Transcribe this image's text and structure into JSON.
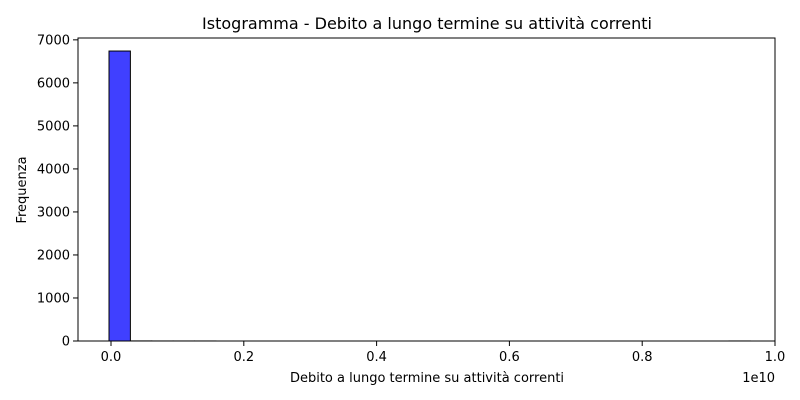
{
  "chart_data": {
    "type": "bar",
    "subtype": "histogram",
    "title": "Istogramma - Debito a lungo termine su attività correnti",
    "xlabel": "Debito a lungo termine su attività correnti",
    "ylabel": "Frequenza",
    "x_offset_text": "1e10",
    "xlim": [
      -0.05,
      1.0
    ],
    "ylim": [
      0,
      7000
    ],
    "x_ticks": [
      0.0,
      0.2,
      0.4,
      0.6,
      0.8,
      1.0
    ],
    "x_tick_labels": [
      "0.0",
      "0.2",
      "0.4",
      "0.6",
      "0.8",
      "1.0"
    ],
    "y_ticks": [
      0,
      1000,
      2000,
      3000,
      4000,
      5000,
      6000,
      7000
    ],
    "y_tick_labels": [
      "0",
      "1000",
      "2000",
      "3000",
      "4000",
      "5000",
      "6000",
      "7000"
    ],
    "bins": {
      "start": -0.003,
      "width": 0.0322,
      "counts": [
        6740,
        2,
        1,
        1,
        1,
        0,
        0,
        0,
        0,
        0,
        0,
        0,
        0,
        0,
        0,
        0,
        0,
        0,
        0,
        0,
        0,
        0,
        0,
        0,
        0,
        0,
        0,
        0,
        0,
        1
      ]
    },
    "bar_color": "#4040ff",
    "edge_color": "#000000",
    "grid": false,
    "legend": "none"
  }
}
